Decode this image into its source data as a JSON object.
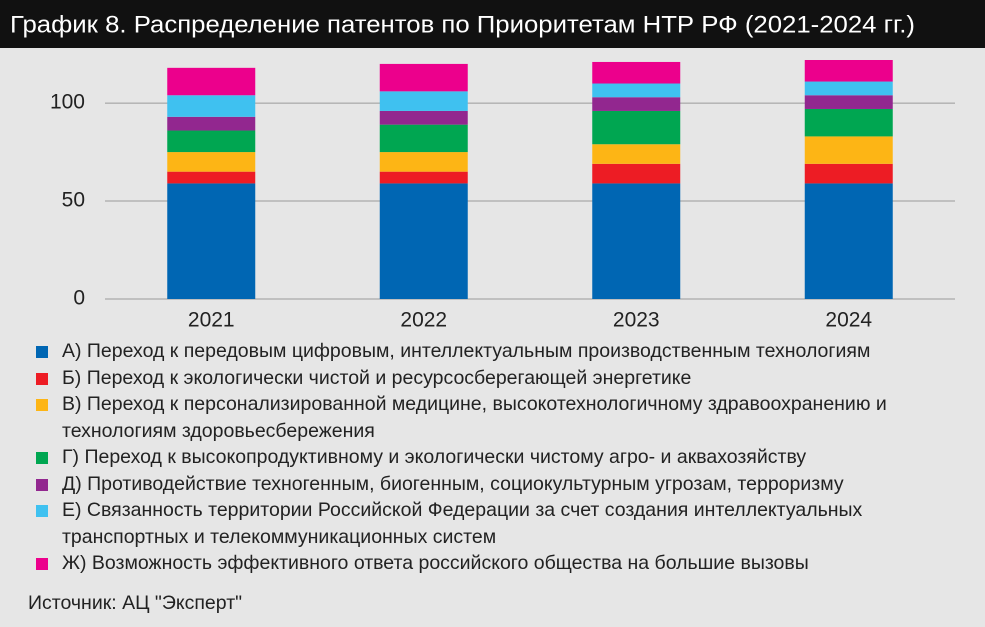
{
  "chart_data": {
    "type": "stacked_bar",
    "title": "График 8. Распределение патентов по Приоритетам НТР РФ (2021-2024 гг.)",
    "categories": [
      "2021",
      "2022",
      "2023",
      "2024"
    ],
    "series": [
      {
        "name": "А) Переход к передовым цифровым, интеллектуальным производственным технологиям",
        "color": "#0066b3",
        "values": [
          59,
          59,
          59,
          59
        ]
      },
      {
        "name": "Б) Переход к экологически чистой и ресурсосберегающей энергетике",
        "color": "#ed1c24",
        "values": [
          6,
          6,
          10,
          10
        ]
      },
      {
        "name": "В) Переход к персонализированной медицине, высокотехнологичному здравоохранению и технологиям здоровьесбережения",
        "color": "#fdb515",
        "values": [
          10,
          10,
          10,
          14
        ]
      },
      {
        "name": "Г) Переход к высокопродуктивному и экологически чистому агро- и аквахозяйству",
        "color": "#00a651",
        "values": [
          11,
          14,
          17,
          14
        ]
      },
      {
        "name": "Д) Противодействие техногенным, биогенным, социокультурным угрозам, терроризму",
        "color": "#92278f",
        "values": [
          7,
          7,
          7,
          7
        ]
      },
      {
        "name": "Е) Связанность территории Российской Федерации за счет создания интеллектуальных транспортных и телекоммуникационных систем",
        "color": "#3fc1f0",
        "values": [
          11,
          10,
          7,
          7
        ]
      },
      {
        "name": "Ж) Возможность эффективного ответа российского общества на большие вызовы",
        "color": "#ec008c",
        "values": [
          14,
          14,
          11,
          11
        ]
      }
    ],
    "ylim": [
      0,
      122
    ],
    "yticks": [
      0,
      50,
      100
    ],
    "grid": true,
    "source": "Источник: АЦ \"Эксперт\""
  }
}
